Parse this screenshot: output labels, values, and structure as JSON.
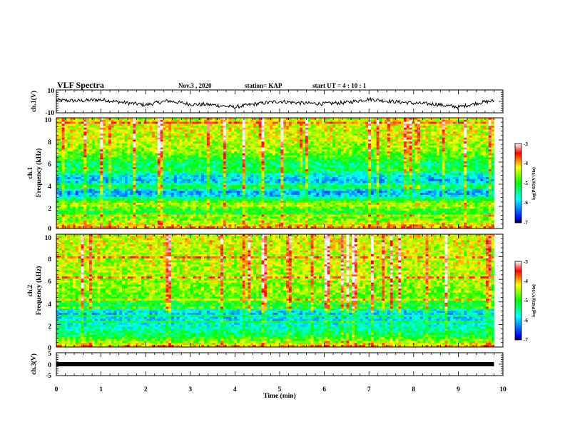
{
  "header": {
    "title": "VLF Spectra",
    "date": "Nov.3 , 2020",
    "station": "station= KAP",
    "start": "start UT = 4 : 10 : 1"
  },
  "chart_data": [
    {
      "type": "line",
      "ylabel": "ch.1(V)",
      "ylim": [
        -10,
        10
      ],
      "ytick_labels": [
        "10",
        "-10"
      ],
      "xlim": [
        0,
        10
      ],
      "series": [
        {
          "x": [
            0,
            0.5,
            1,
            1.5,
            2,
            2.5,
            3,
            3.5,
            4,
            4.5,
            5,
            5.5,
            6,
            6.5,
            7,
            7.5,
            8,
            8.5,
            9,
            9.5,
            9.8
          ],
          "values": [
            1,
            0.5,
            1.5,
            -1,
            -3,
            0.5,
            -2.5,
            -3,
            -5,
            -2,
            0,
            -1.5,
            -2,
            -1,
            2,
            0,
            -1.5,
            -2.5,
            -5,
            -1,
            0.5
          ]
        }
      ]
    },
    {
      "type": "heatmap",
      "ylabel_lines": [
        "ch.1",
        "Frequency (kHz)"
      ],
      "ylim": [
        0,
        10
      ],
      "ytick_labels": [
        "0",
        "2",
        "4",
        "6",
        "8",
        "10"
      ],
      "xlim": [
        0,
        9.8
      ],
      "color_scale": {
        "label": "log(PSD)(V²/Hz)",
        "range": [
          -7,
          -3
        ],
        "tick_labels": [
          "-3",
          "-4",
          "-5",
          "-6",
          "-7"
        ],
        "colors": [
          "#000000",
          "#0000ff",
          "#00ffff",
          "#00ff00",
          "#ffff00",
          "#ff0000",
          "#ffffff"
        ]
      },
      "frequency_profile_khz": [
        [
          0,
          -3.8
        ],
        [
          0.5,
          -4.4
        ],
        [
          1,
          -4.8
        ],
        [
          1.5,
          -5.1
        ],
        [
          2.2,
          -4.4
        ],
        [
          2.6,
          -5.2
        ],
        [
          3,
          -6.0
        ],
        [
          3.4,
          -6.2
        ],
        [
          3.7,
          -5.0
        ],
        [
          4.3,
          -6.1
        ],
        [
          4.9,
          -5.7
        ],
        [
          5.3,
          -5.0
        ],
        [
          5.7,
          -5.4
        ],
        [
          6.3,
          -5.0
        ],
        [
          7,
          -4.6
        ],
        [
          8,
          -4.4
        ],
        [
          9,
          -4.3
        ],
        [
          10,
          -4.3
        ]
      ]
    },
    {
      "type": "heatmap",
      "ylabel_lines": [
        "ch.2",
        "Frequency (kHz)"
      ],
      "ylim": [
        0,
        10
      ],
      "ytick_labels": [
        "0",
        "2",
        "4",
        "6",
        "8",
        "10"
      ],
      "xlim": [
        0,
        9.8
      ],
      "color_scale": {
        "label": "log(PSD)(V²/Hz)",
        "range": [
          -7,
          -3
        ],
        "tick_labels": [
          "-3",
          "-4",
          "-5",
          "-6",
          "-7"
        ],
        "colors": [
          "#000000",
          "#0000ff",
          "#00ffff",
          "#00ff00",
          "#ffff00",
          "#ff0000",
          "#ffffff"
        ]
      },
      "frequency_profile_khz": [
        [
          0,
          -3.9
        ],
        [
          0.5,
          -4.6
        ],
        [
          1,
          -5.2
        ],
        [
          1.5,
          -5.5
        ],
        [
          2,
          -5.7
        ],
        [
          2.5,
          -5.9
        ],
        [
          3,
          -6.0
        ],
        [
          3.5,
          -5.3
        ],
        [
          4,
          -4.9
        ],
        [
          5,
          -4.6
        ],
        [
          6,
          -4.5
        ],
        [
          7,
          -4.4
        ],
        [
          8,
          -4.4
        ],
        [
          9,
          -4.3
        ],
        [
          10,
          -4.3
        ]
      ]
    },
    {
      "type": "line",
      "ylabel": "ch.3(V)",
      "ylim": [
        -5,
        5
      ],
      "ytick_labels": [
        "5",
        "0",
        "-5"
      ],
      "xlim": [
        0,
        10
      ],
      "series": [
        {
          "x": [
            0,
            9.8
          ],
          "values": [
            0,
            0
          ]
        }
      ]
    }
  ],
  "x_axis": {
    "label": "Time (min)",
    "ticks": [
      0,
      1,
      2,
      3,
      4,
      5,
      6,
      7,
      8,
      9,
      10
    ],
    "tick_labels": [
      "0",
      "1",
      "2",
      "3",
      "4",
      "5",
      "6",
      "7",
      "8",
      "9",
      "10"
    ]
  }
}
